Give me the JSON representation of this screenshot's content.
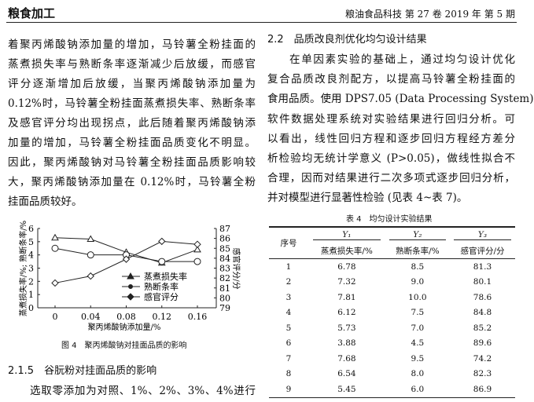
{
  "header": {
    "section": "粮食加工",
    "journal": "粮油食品科技 第 27 卷 2019 年 第 5 期"
  },
  "left": {
    "lines": [
      "着聚丙烯酸钠添加量的增加，马铃薯全粉挂面的",
      "蒸煮损失率与熟断条率逐渐减少后放缓，而感官",
      "评分逐渐增加后放缓，当聚丙烯酸钠添加量为",
      "0.12%时，马铃薯全粉挂面蒸煮损失率、熟断条率",
      "及感官评分均出现拐点，此后随着聚丙烯酸钠添",
      "加量的增加，马铃薯全粉挂面品质变化不明显。",
      "因此，聚丙烯酸钠对马铃薯全粉挂面品质影响较",
      "大，聚丙烯酸钠添加量在 0.12%时，马铃薯全粉",
      "挂面品质较好。"
    ],
    "subheading": "2.1.5　谷朊粉对挂面品质的影响",
    "last_line": "选取零添加为对照、1%、2%、3%、4%进行"
  },
  "right": {
    "heading": "2.2　品质改良剂优化均匀设计结果",
    "lines": [
      "在单因素实验的基础上，通过均匀设计优化",
      "复合品质改良剂配方，以提高马铃薯全粉挂面的",
      "食用品质。使用 DPS7.05 (Data Processing System)",
      "软件数据处理系统对实验结果进行回归分析。可",
      "以看出，线性回归方程和逐步回归方程经方差分",
      "析检验均无统计学意义 (P>0.05)，做线性拟合不",
      "合理，因而对结果进行二次多项式逐步回归分析，",
      "并对模型进行显著性检验 (见表 4~表 7)。"
    ]
  },
  "figure": {
    "caption": "图 4　聚丙烯酸钠对挂面品质的影响"
  },
  "chart_data": {
    "type": "line",
    "x": [
      0,
      0.04,
      0.08,
      0.12,
      0.16
    ],
    "xlabel": "聚丙烯酸钠添加量/%",
    "ylabel": "蒸煮损失率/%; 熟断条率/%",
    "y2label": "感官评分/分",
    "ylim": [
      0,
      6
    ],
    "y2lim": [
      79,
      87
    ],
    "yticks": [
      "0",
      "1",
      "2",
      "3",
      "4",
      "5",
      "6"
    ],
    "y2ticks": [
      "79",
      "80",
      "81",
      "82",
      "83",
      "84",
      "85",
      "86",
      "87"
    ],
    "xticks": [
      "0",
      "0.04",
      "0.08",
      "0.12",
      "0.16"
    ],
    "legend": "center-right",
    "grid": false,
    "series": [
      {
        "name": "蒸煮损失率",
        "axis": "left",
        "marker": "triangle",
        "values": [
          5.3,
          5.2,
          4.2,
          3.4,
          4.4
        ]
      },
      {
        "name": "熟断条率",
        "axis": "left",
        "marker": "circle",
        "values": [
          4.5,
          4.0,
          4.0,
          3.5,
          3.5
        ]
      },
      {
        "name": "感官评分",
        "axis": "right",
        "marker": "diamond",
        "values": [
          81.5,
          82.2,
          83.9,
          85.7,
          85.4
        ]
      }
    ]
  },
  "table": {
    "caption": "表 4　均匀设计实验结果",
    "col0": "序号",
    "ylabels": [
      "Y₁",
      "Y₂",
      "Y₃"
    ],
    "units": [
      "蒸煮损失率/%",
      "熟断条率/%",
      "感官评分/分"
    ],
    "rows": [
      [
        "1",
        "6.78",
        "8.5",
        "81.3"
      ],
      [
        "2",
        "7.32",
        "9.0",
        "80.1"
      ],
      [
        "3",
        "7.81",
        "10.0",
        "78.6"
      ],
      [
        "4",
        "6.12",
        "7.5",
        "84.8"
      ],
      [
        "5",
        "5.73",
        "7.0",
        "85.2"
      ],
      [
        "6",
        "3.88",
        "4.5",
        "89.6"
      ],
      [
        "7",
        "7.68",
        "9.5",
        "74.2"
      ],
      [
        "8",
        "6.54",
        "8.0",
        "82.3"
      ],
      [
        "9",
        "5.45",
        "6.0",
        "86.9"
      ]
    ]
  }
}
